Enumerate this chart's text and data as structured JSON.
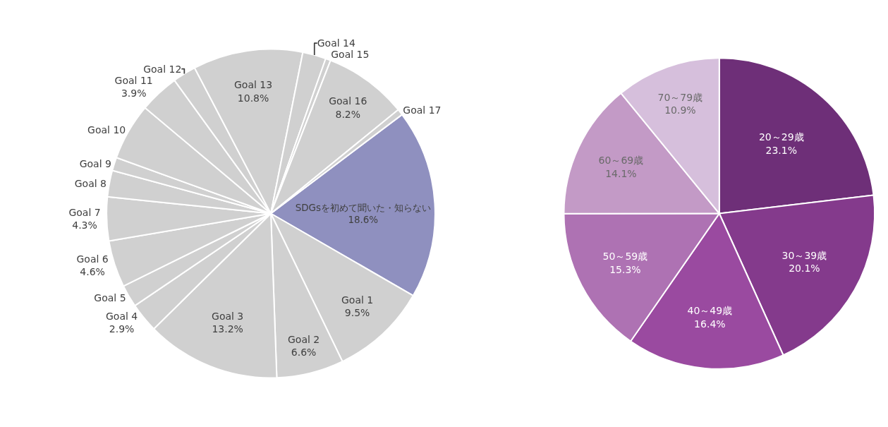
{
  "chart_data": [
    {
      "type": "pie",
      "categories": [
        "SDGsを初めて聞いた・知らない",
        "Goal 1",
        "Goal 2",
        "Goal 3",
        "Goal 4",
        "Goal 5",
        "Goal 6",
        "Goal 7",
        "Goal 8",
        "Goal 9",
        "Goal 10",
        "Goal 11",
        "Goal 12",
        "Goal 13",
        "Goal 14",
        "Goal 15",
        "Goal 16",
        "Goal 17"
      ],
      "values": [
        18.6,
        9.5,
        6.6,
        13.2,
        2.9,
        2.2,
        4.6,
        4.3,
        2.6,
        1.3,
        5.6,
        3.9,
        2.3,
        10.8,
        2.3,
        0.5,
        8.2,
        0.6
      ],
      "value_labels": [
        "18.6%",
        "9.5%",
        "6.6%",
        "13.2%",
        "2.9%",
        null,
        "4.6%",
        "4.3%",
        null,
        null,
        null,
        "3.9%",
        null,
        "10.8%",
        null,
        null,
        "8.2%",
        null
      ],
      "colors": [
        "#8f90bf",
        "#d0d0d0",
        "#d0d0d0",
        "#d0d0d0",
        "#d0d0d0",
        "#d0d0d0",
        "#d0d0d0",
        "#d0d0d0",
        "#d0d0d0",
        "#d0d0d0",
        "#d0d0d0",
        "#d0d0d0",
        "#d0d0d0",
        "#d0d0d0",
        "#d0d0d0",
        "#d0d0d0",
        "#d0d0d0",
        "#d0d0d0"
      ],
      "legend": false
    },
    {
      "type": "pie",
      "categories": [
        "20～29歳",
        "30～39歳",
        "40～49歳",
        "50～59歳",
        "60～69歳",
        "70～79歳"
      ],
      "values": [
        23.1,
        20.1,
        16.4,
        15.3,
        14.1,
        10.9
      ],
      "value_labels": [
        "23.1%",
        "20.1%",
        "16.4%",
        "15.3%",
        "14.1%",
        "10.9%"
      ],
      "colors": [
        "#6e2f78",
        "#843a8c",
        "#9a4aa0",
        "#ae72b3",
        "#c39ac6",
        "#d6bfdc"
      ],
      "legend": false
    }
  ]
}
